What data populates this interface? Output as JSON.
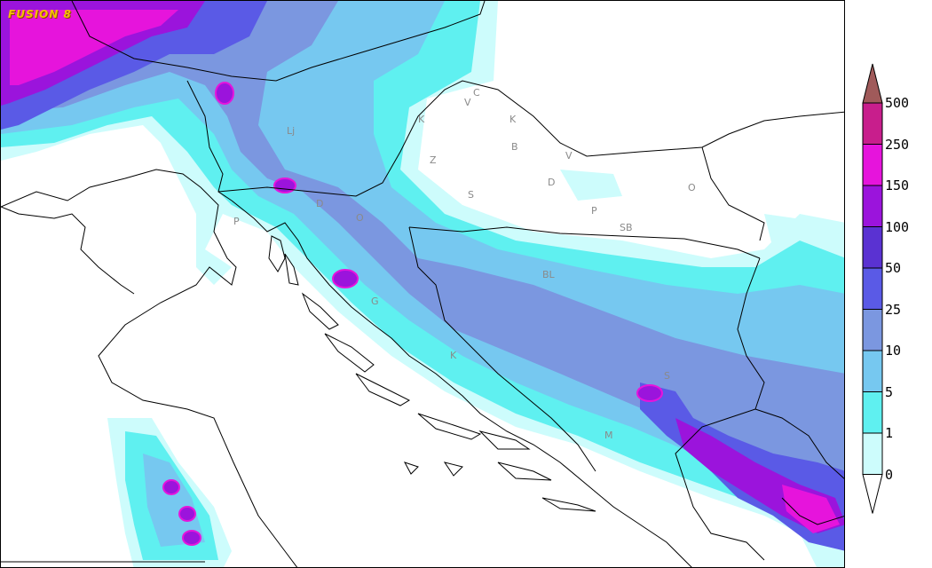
{
  "brand": {
    "label": "FUSION 8"
  },
  "places": [
    {
      "id": "lj",
      "label": "Lj"
    },
    {
      "id": "c",
      "label": "C"
    },
    {
      "id": "v1",
      "label": "V"
    },
    {
      "id": "k1",
      "label": "K"
    },
    {
      "id": "k2",
      "label": "K"
    },
    {
      "id": "b",
      "label": "B"
    },
    {
      "id": "z",
      "label": "Z"
    },
    {
      "id": "v2",
      "label": "V"
    },
    {
      "id": "d1",
      "label": "D"
    },
    {
      "id": "s1",
      "label": "S"
    },
    {
      "id": "o1",
      "label": "O"
    },
    {
      "id": "p1",
      "label": "P"
    },
    {
      "id": "d2",
      "label": "D"
    },
    {
      "id": "o2",
      "label": "O"
    },
    {
      "id": "p2",
      "label": "P"
    },
    {
      "id": "sb",
      "label": "SB"
    },
    {
      "id": "bl",
      "label": "BL"
    },
    {
      "id": "g",
      "label": "G"
    },
    {
      "id": "k3",
      "label": "K"
    },
    {
      "id": "s2",
      "label": "S"
    },
    {
      "id": "m",
      "label": "M"
    }
  ],
  "legend": {
    "levels": [
      "0",
      "1",
      "5",
      "10",
      "25",
      "50",
      "100",
      "150",
      "250",
      "500"
    ],
    "colors": [
      "#cdfcfc",
      "#5ff0f0",
      "#76c8f0",
      "#7b97e0",
      "#5a5ae6",
      "#5a32d2",
      "#9b14dc",
      "#e614dc",
      "#c81e8c"
    ],
    "overflow_color": "#a05a5a",
    "underflow_color": "#ffffff"
  },
  "map": {
    "land_color": "#ffffff",
    "coast_color": "#000000",
    "border_color": "#000000"
  }
}
